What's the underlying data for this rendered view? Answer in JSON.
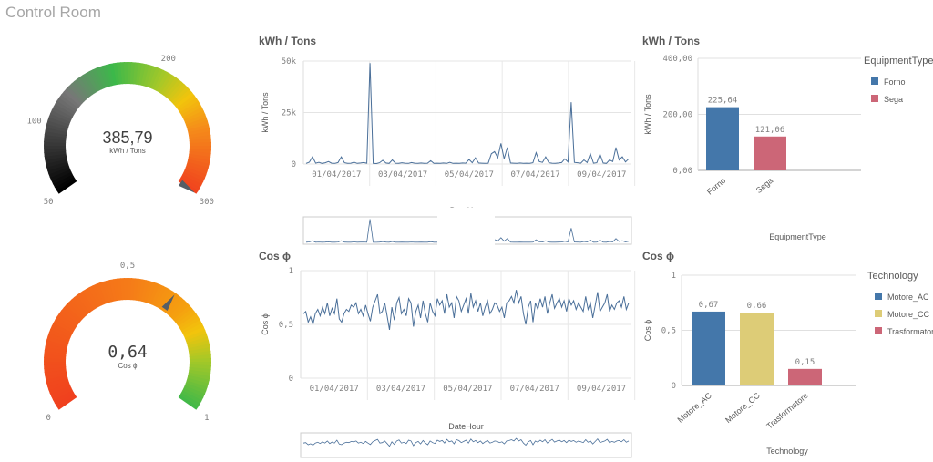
{
  "app": {
    "title": "Control Room"
  },
  "gauges": [
    {
      "value": 385.79,
      "value_text": "385,79",
      "label": "kWh / Tons",
      "min": 50,
      "max": 300,
      "ticks": [
        {
          "v": 50,
          "t": "50"
        },
        {
          "v": 100,
          "t": "100"
        },
        {
          "v": 200,
          "t": "200"
        },
        {
          "v": 300,
          "t": "300"
        }
      ]
    },
    {
      "value": 0.64,
      "value_text": "0,64",
      "label": "Cos ϕ",
      "min": 0,
      "max": 1,
      "ticks": [
        {
          "v": 0,
          "t": "0"
        },
        {
          "v": 0.5,
          "t": "0,5"
        },
        {
          "v": 1,
          "t": "1"
        }
      ]
    }
  ],
  "chart_data": [
    {
      "type": "line",
      "title": "kWh / Tons",
      "xlabel": "DateHour",
      "ylabel": "kWh / Tons",
      "ylim": [
        0,
        50000
      ],
      "yticks": [
        "0",
        "25k",
        "50k"
      ],
      "xticks": [
        "01/04/2017",
        "03/04/2017",
        "05/04/2017",
        "07/04/2017",
        "09/04/2017"
      ],
      "color": "#4a6f99",
      "values": [
        300,
        900,
        3500,
        400,
        800,
        300,
        600,
        1200,
        400,
        300,
        700,
        3500,
        600,
        300,
        400,
        900,
        300,
        500,
        700,
        400,
        49000,
        300,
        200,
        600,
        1800,
        500,
        300,
        2000,
        400,
        300,
        600,
        400,
        300,
        700,
        400,
        300,
        500,
        300,
        400,
        1600,
        300,
        400,
        300,
        500,
        300,
        800,
        300,
        400,
        300,
        500,
        400,
        2200,
        600,
        3000,
        500,
        400,
        300,
        400,
        5000,
        6000,
        3000,
        10000,
        2500,
        8000,
        500,
        400,
        300,
        500,
        300,
        400,
        300,
        600,
        5500,
        1200,
        800,
        3500,
        600,
        400,
        300,
        500,
        700,
        2500,
        1000,
        30000,
        800,
        600,
        400,
        2000,
        700,
        5000,
        400,
        600,
        4800,
        500,
        300,
        2000,
        1200,
        8000,
        2000,
        3500,
        1000,
        2500
      ]
    },
    {
      "type": "bar",
      "title": "kWh / Tons",
      "xlabel": "EquipmentType",
      "ylabel": "kWh / Tons",
      "ylim": [
        0,
        400
      ],
      "yticks": [
        "0,00",
        "200,00",
        "400,00"
      ],
      "categories": [
        "Forno",
        "Sega"
      ],
      "values": [
        225.64,
        121.06
      ],
      "value_labels": [
        "225,64",
        "121,06"
      ],
      "colors": [
        "#4477aa",
        "#cc6677"
      ],
      "legend": {
        "title": "EquipmentType",
        "position": "right",
        "items": [
          "Forno",
          "Sega"
        ]
      }
    },
    {
      "type": "line",
      "title": "Cos ϕ",
      "xlabel": "DateHour",
      "ylabel": "Cos ϕ",
      "ylim": [
        0,
        1
      ],
      "yticks": [
        "0",
        "0,5",
        "1"
      ],
      "xticks": [
        "01/04/2017",
        "03/04/2017",
        "05/04/2017",
        "07/04/2017",
        "09/04/2017"
      ],
      "color": "#4a6f99",
      "values": [
        0.6,
        0.62,
        0.52,
        0.57,
        0.5,
        0.6,
        0.64,
        0.58,
        0.66,
        0.6,
        0.7,
        0.58,
        0.65,
        0.6,
        0.74,
        0.55,
        0.52,
        0.6,
        0.64,
        0.62,
        0.68,
        0.66,
        0.7,
        0.6,
        0.64,
        0.58,
        0.68,
        0.6,
        0.53,
        0.66,
        0.72,
        0.78,
        0.6,
        0.62,
        0.7,
        0.58,
        0.45,
        0.66,
        0.54,
        0.7,
        0.75,
        0.6,
        0.64,
        0.58,
        0.74,
        0.7,
        0.48,
        0.62,
        0.68,
        0.56,
        0.72,
        0.6,
        0.52,
        0.7,
        0.62,
        0.58,
        0.74,
        0.68,
        0.72,
        0.6,
        0.78,
        0.66,
        0.7,
        0.56,
        0.76,
        0.72,
        0.62,
        0.68,
        0.74,
        0.6,
        0.79,
        0.66,
        0.72,
        0.62,
        0.7,
        0.58,
        0.66,
        0.72,
        0.6,
        0.64,
        0.7,
        0.68,
        0.62,
        0.66,
        0.56,
        0.7,
        0.72,
        0.76,
        0.7,
        0.82,
        0.7,
        0.76,
        0.6,
        0.5,
        0.66,
        0.72,
        0.52,
        0.7,
        0.64,
        0.74,
        0.66,
        0.76,
        0.6,
        0.7,
        0.78,
        0.65,
        0.7,
        0.74,
        0.66,
        0.72,
        0.62,
        0.74,
        0.68,
        0.72,
        0.64,
        0.7,
        0.66,
        0.62,
        0.76,
        0.64,
        0.7,
        0.56,
        0.68,
        0.8,
        0.62,
        0.66,
        0.7,
        0.78,
        0.62,
        0.68,
        0.64,
        0.7,
        0.72,
        0.66,
        0.76,
        0.64,
        0.7
      ]
    },
    {
      "type": "bar",
      "title": "Cos ϕ",
      "xlabel": "Technology",
      "ylabel": "Cos ϕ",
      "ylim": [
        0,
        1
      ],
      "yticks": [
        "0",
        "0,5",
        "1"
      ],
      "categories": [
        "Motore_AC",
        "Motore_CC",
        "Trasformatore"
      ],
      "values": [
        0.67,
        0.66,
        0.15
      ],
      "value_labels": [
        "0,67",
        "0,66",
        "0,15"
      ],
      "colors": [
        "#4477aa",
        "#ddcc77",
        "#cc6677"
      ],
      "legend": {
        "title": "Technology",
        "position": "right",
        "items": [
          "Motore_AC",
          "Motore_CC",
          "Trasformatore"
        ]
      }
    }
  ]
}
